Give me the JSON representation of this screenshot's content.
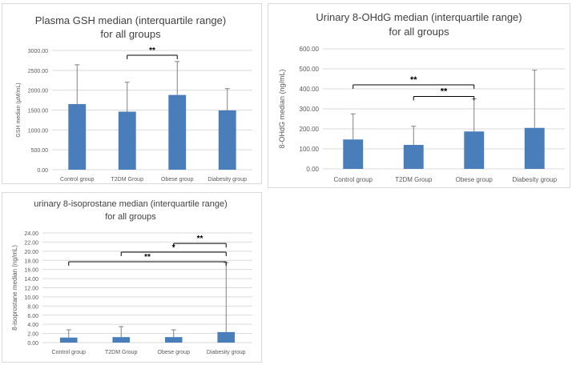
{
  "colors": {
    "bar": "#4a7ebb",
    "axis_text": "#595959",
    "grid": "#d9d9d9",
    "title": "#404040"
  },
  "chart_data": [
    {
      "type": "bar",
      "title": "Plasma GSH median (interquartile range)",
      "subtitle": "for all groups",
      "ylabel": "GSH median (µM/mL)",
      "categories": [
        "Control group",
        "T2DM Group",
        "Obese group",
        "Diabesity group"
      ],
      "values": [
        1650,
        1460,
        1880,
        1490
      ],
      "error_upper": [
        2640,
        2200,
        2720,
        2040
      ],
      "ylim": [
        0,
        3000
      ],
      "yticks": [
        "0.00",
        "500.00",
        "1000.00",
        "1500.00",
        "2000.00",
        "2500.00",
        "3000.00"
      ],
      "grid": true,
      "legend": "none",
      "significance": [
        {
          "from": 1,
          "to": 2,
          "label": "**",
          "level": 2880
        }
      ]
    },
    {
      "type": "bar",
      "title": "Urinary 8-OHdG median (interquartile range)",
      "subtitle": "for all groups",
      "ylabel": "8-OHdG median (ng/mL)",
      "categories": [
        "Control group",
        "T2DM Group",
        "Obese group",
        "Diabesity group"
      ],
      "values": [
        147,
        120,
        187,
        205
      ],
      "error_upper": [
        275,
        213,
        350,
        493
      ],
      "ylim": [
        0,
        600
      ],
      "yticks": [
        "0.00",
        "100.00",
        "200.00",
        "300.00",
        "400.00",
        "500.00",
        "600.00"
      ],
      "grid": true,
      "legend": "none",
      "significance": [
        {
          "from": 0,
          "to": 2,
          "label": "**",
          "level": 420
        },
        {
          "from": 1,
          "to": 2,
          "label": "**",
          "level": 362
        }
      ]
    },
    {
      "type": "bar",
      "title": "urinary 8-isoprostane median (interquartile range)",
      "subtitle": "for all groups",
      "ylabel": "8-isoprostane median (ng/mL)",
      "categories": [
        "Control group",
        "T2DM Group",
        "Obese group",
        "Diabesity group"
      ],
      "values": [
        1.1,
        1.2,
        1.2,
        2.3
      ],
      "error_upper": [
        2.8,
        3.5,
        2.8,
        17.5
      ],
      "ylim": [
        0,
        24
      ],
      "yticks": [
        "0.00",
        "2.00",
        "4.00",
        "6.00",
        "8.00",
        "10.00",
        "12.00",
        "14.00",
        "16.00",
        "18.00",
        "20.00",
        "22.00",
        "24.00"
      ],
      "grid": true,
      "legend": "none",
      "significance": [
        {
          "from": 2,
          "to": 3,
          "label": "**",
          "level": 21.7
        },
        {
          "from": 1,
          "to": 3,
          "label": "*",
          "level": 19.8
        },
        {
          "from": 0,
          "to": 3,
          "label": "**",
          "level": 17.7
        }
      ]
    }
  ]
}
